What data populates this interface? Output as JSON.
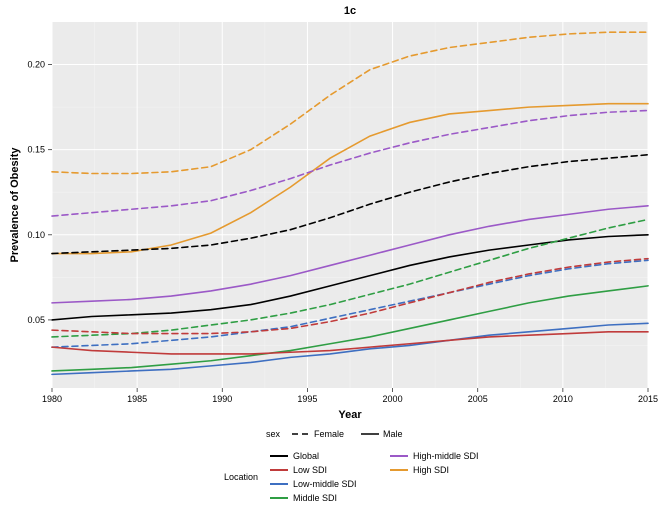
{
  "title": "1c",
  "x_axis": {
    "label": "Year",
    "min": 1980,
    "max": 2015,
    "ticks": [
      1980,
      1985,
      1990,
      1995,
      2000,
      2005,
      2010,
      2015
    ]
  },
  "y_axis": {
    "label": "Prevalence of Obesity",
    "min": 0.01,
    "max": 0.225,
    "ticks": [
      0.05,
      0.1,
      0.15,
      0.2
    ]
  },
  "plot": {
    "bg": "#ebebeb",
    "grid_minor": "#f3f3f3",
    "grid_major": "#ffffff",
    "line_width": 1.6
  },
  "sex_legend": {
    "title": "sex",
    "items": [
      {
        "label": "Female",
        "dash": "6,4"
      },
      {
        "label": "Male",
        "dash": "none"
      }
    ]
  },
  "location_legend": {
    "title": "Location",
    "items": [
      {
        "label": "Global",
        "color": "#000000"
      },
      {
        "label": "Low SDI",
        "color": "#c03b3b"
      },
      {
        "label": "Low-middle SDI",
        "color": "#3e6fc1"
      },
      {
        "label": "Middle SDI",
        "color": "#2f9e44"
      },
      {
        "label": "High-middle SDI",
        "color": "#9b59c7"
      },
      {
        "label": "High SDI",
        "color": "#e59a2f"
      }
    ]
  },
  "series": [
    {
      "name": "High SDI Female",
      "color": "#e59a2f",
      "dash": "6,4",
      "y": [
        0.137,
        0.136,
        0.136,
        0.137,
        0.14,
        0.15,
        0.165,
        0.182,
        0.197,
        0.205,
        0.21,
        0.213,
        0.216,
        0.218,
        0.219,
        0.219
      ]
    },
    {
      "name": "High SDI Male",
      "color": "#e59a2f",
      "dash": "none",
      "y": [
        0.089,
        0.089,
        0.09,
        0.094,
        0.101,
        0.113,
        0.128,
        0.145,
        0.158,
        0.166,
        0.171,
        0.173,
        0.175,
        0.176,
        0.177,
        0.177
      ]
    },
    {
      "name": "High-middle SDI Female",
      "color": "#9b59c7",
      "dash": "6,4",
      "y": [
        0.111,
        0.113,
        0.115,
        0.117,
        0.12,
        0.126,
        0.133,
        0.141,
        0.148,
        0.154,
        0.159,
        0.163,
        0.167,
        0.17,
        0.172,
        0.173
      ]
    },
    {
      "name": "High-middle SDI Male",
      "color": "#9b59c7",
      "dash": "none",
      "y": [
        0.06,
        0.061,
        0.062,
        0.064,
        0.067,
        0.071,
        0.076,
        0.082,
        0.088,
        0.094,
        0.1,
        0.105,
        0.109,
        0.112,
        0.115,
        0.117
      ]
    },
    {
      "name": "Global Female",
      "color": "#000000",
      "dash": "6,4",
      "y": [
        0.089,
        0.09,
        0.091,
        0.092,
        0.094,
        0.098,
        0.103,
        0.11,
        0.118,
        0.125,
        0.131,
        0.136,
        0.14,
        0.143,
        0.145,
        0.147
      ]
    },
    {
      "name": "Global Male",
      "color": "#000000",
      "dash": "none",
      "y": [
        0.05,
        0.052,
        0.053,
        0.054,
        0.056,
        0.059,
        0.064,
        0.07,
        0.076,
        0.082,
        0.087,
        0.091,
        0.094,
        0.097,
        0.099,
        0.1
      ]
    },
    {
      "name": "Middle SDI Female",
      "color": "#2f9e44",
      "dash": "6,4",
      "y": [
        0.04,
        0.041,
        0.042,
        0.044,
        0.047,
        0.05,
        0.054,
        0.059,
        0.065,
        0.071,
        0.078,
        0.085,
        0.092,
        0.098,
        0.104,
        0.109
      ]
    },
    {
      "name": "Middle SDI Male",
      "color": "#2f9e44",
      "dash": "none",
      "y": [
        0.02,
        0.021,
        0.022,
        0.024,
        0.026,
        0.029,
        0.032,
        0.036,
        0.04,
        0.045,
        0.05,
        0.055,
        0.06,
        0.064,
        0.067,
        0.07
      ]
    },
    {
      "name": "Low-middle SDI Female",
      "color": "#3e6fc1",
      "dash": "6,4",
      "y": [
        0.034,
        0.035,
        0.036,
        0.038,
        0.04,
        0.043,
        0.046,
        0.051,
        0.056,
        0.061,
        0.066,
        0.071,
        0.076,
        0.08,
        0.083,
        0.085
      ]
    },
    {
      "name": "Low-middle SDI Male",
      "color": "#3e6fc1",
      "dash": "none",
      "y": [
        0.018,
        0.019,
        0.02,
        0.021,
        0.023,
        0.025,
        0.028,
        0.03,
        0.033,
        0.035,
        0.038,
        0.041,
        0.043,
        0.045,
        0.047,
        0.048
      ]
    },
    {
      "name": "Low SDI Female",
      "color": "#c03b3b",
      "dash": "6,4",
      "y": [
        0.044,
        0.043,
        0.042,
        0.042,
        0.042,
        0.043,
        0.045,
        0.049,
        0.054,
        0.06,
        0.066,
        0.072,
        0.077,
        0.081,
        0.084,
        0.086
      ]
    },
    {
      "name": "Low SDI Male",
      "color": "#c03b3b",
      "dash": "none",
      "y": [
        0.034,
        0.032,
        0.031,
        0.03,
        0.03,
        0.03,
        0.031,
        0.032,
        0.034,
        0.036,
        0.038,
        0.04,
        0.041,
        0.042,
        0.043,
        0.043
      ]
    }
  ],
  "x_points": [
    1980,
    1982.33,
    1984.67,
    1987,
    1989.33,
    1991.67,
    1994,
    1996.33,
    1998.67,
    2001,
    2003.33,
    2005.67,
    2008,
    2010.33,
    2012.67,
    2015
  ]
}
